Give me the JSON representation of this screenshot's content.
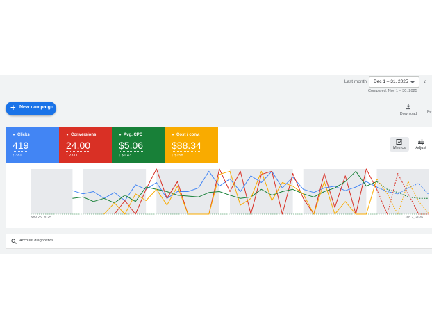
{
  "header": {
    "date_label": "Last month",
    "date_range": "Dec 1 – 31, 2025",
    "compare_text": "Compared: Nov 1 – 30, 2025",
    "download_label": "Download",
    "truncated_label": "Fe"
  },
  "toolbar": {
    "new_campaign_label": "New campaign"
  },
  "scorecards": [
    {
      "name": "Clicks",
      "value": "419",
      "delta": "↑ 381",
      "color": "#4285f4"
    },
    {
      "name": "Conversions",
      "value": "24.00",
      "delta": "↑ 23.00",
      "color": "#d93025"
    },
    {
      "name": "Avg. CPC",
      "value": "$5.06",
      "delta": "↓ $1.43",
      "color": "#188038"
    },
    {
      "name": "Cost / conv.",
      "value": "$88.34",
      "delta": "↓ $158",
      "color": "#f9ab00"
    }
  ],
  "chart_controls": {
    "metrics_label": "Metrics",
    "adjust_label": "Adjust"
  },
  "chart_data": {
    "type": "line",
    "x": [
      "Nov 25, 2025",
      "Nov 26",
      "Nov 27",
      "Nov 28",
      "Nov 29",
      "Nov 30",
      "Dec 1",
      "Dec 2",
      "Dec 3",
      "Dec 4",
      "Dec 5",
      "Dec 6",
      "Dec 7",
      "Dec 8",
      "Dec 9",
      "Dec 10",
      "Dec 11",
      "Dec 12",
      "Dec 13",
      "Dec 14",
      "Dec 15",
      "Dec 16",
      "Dec 17",
      "Dec 18",
      "Dec 19",
      "Dec 20",
      "Dec 21",
      "Dec 22",
      "Dec 23",
      "Dec 24",
      "Dec 25",
      "Dec 26",
      "Dec 27",
      "Dec 28",
      "Dec 29",
      "Dec 30",
      "Dec 31",
      "Jan 1",
      "Jan 2, 2026"
    ],
    "x_tick_labels": [
      "Nov 25, 2025",
      "Jan 2, 2026"
    ],
    "y_range": [
      0,
      1
    ],
    "series": [
      {
        "color": "#4285f4",
        "values": [
          null,
          null,
          null,
          null,
          0.52,
          0.45,
          0.5,
          0.35,
          0.48,
          0.3,
          0.65,
          0.55,
          0.7,
          0.35,
          0.5,
          0.5,
          0.58,
          0.95,
          0.62,
          0.78,
          0.5,
          0.85,
          0.7,
          0.95,
          0.58,
          0.82,
          0.55,
          0.48,
          0.58,
          0.62,
          0.52,
          0.6,
          0.72,
          0.6,
          0.5,
          0.45,
          0.58,
          0.68,
          0.42
        ]
      },
      {
        "color": "#d93025",
        "values": [
          null,
          null,
          null,
          null,
          null,
          null,
          null,
          null,
          0.0,
          0.3,
          0.0,
          0.55,
          1.0,
          0.35,
          0.72,
          0.0,
          0.0,
          0.0,
          1.0,
          0.5,
          0.95,
          0.0,
          0.88,
          0.95,
          0.0,
          0.9,
          0.35,
          0.0,
          0.9,
          0.15,
          0.85,
          0.0,
          1.0,
          0.55,
          0.0,
          0.9,
          0.45,
          0.0,
          0.0
        ]
      },
      {
        "color": "#188038",
        "values": [
          null,
          null,
          null,
          null,
          0.35,
          0.38,
          0.28,
          0.35,
          0.25,
          0.42,
          0.28,
          0.6,
          0.55,
          0.5,
          0.42,
          0.4,
          0.38,
          0.48,
          0.5,
          0.42,
          0.35,
          0.38,
          0.55,
          0.42,
          0.5,
          0.55,
          0.45,
          0.38,
          0.5,
          0.58,
          0.72,
          0.95,
          0.62,
          0.72,
          0.55,
          0.48,
          0.38,
          0.35,
          0.35
        ]
      },
      {
        "color": "#f9ab00",
        "values": [
          null,
          null,
          null,
          null,
          null,
          null,
          null,
          0.0,
          0.25,
          0.0,
          0.45,
          0.3,
          0.55,
          0.2,
          0.62,
          0.0,
          0.0,
          0.0,
          0.88,
          0.95,
          0.2,
          0.35,
          0.95,
          0.3,
          0.7,
          0.62,
          0.45,
          0.0,
          0.72,
          0.0,
          0.28,
          0.0,
          0.0,
          0.78,
          0.45,
          0.0,
          0.72,
          0.28,
          0.0
        ]
      }
    ],
    "shaded_x": [
      "Nov 25, 2025",
      "Nov 29",
      "Nov 30",
      "Dec 6",
      "Dec 7",
      "Dec 13",
      "Dec 14",
      "Dec 20",
      "Dec 21",
      "Dec 27",
      "Dec 28",
      "Jan 3"
    ],
    "grid": false,
    "legend": "none"
  },
  "diagnostics": {
    "label": "Account diagnostics"
  }
}
